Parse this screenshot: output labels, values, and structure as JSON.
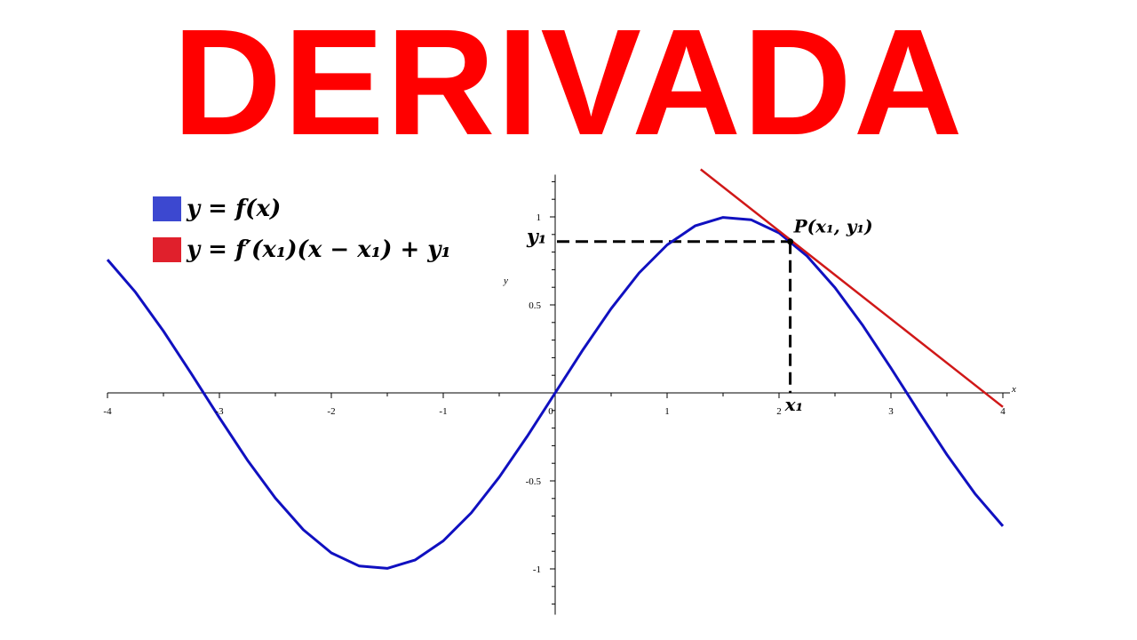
{
  "title": "DERIVADA",
  "colors": {
    "title": "#ff0000",
    "curve": "#1010c0",
    "tangent": "#d01818",
    "legend_curve": "#3c48d0",
    "legend_tangent": "#e0202c"
  },
  "legend": [
    {
      "label": "y = f(x)",
      "color": "#3c48d0"
    },
    {
      "label": "y = f′(x₁)(x − x₁) + y₁",
      "color": "#e0202c"
    }
  ],
  "annotations": {
    "point": "P(x₁, y₁)",
    "x1": "x₁",
    "y1": "y₁"
  },
  "chart_data": {
    "type": "line",
    "xlabel": "x",
    "ylabel": "y",
    "xlim": [
      -4,
      4
    ],
    "ylim": [
      -1.25,
      1.25
    ],
    "x_ticks": [
      -4,
      -3,
      -2,
      -1,
      0,
      1,
      2,
      3,
      4
    ],
    "x_tick_labels": [
      "-4",
      "-3",
      "-2",
      "-1",
      "0",
      "1",
      "2",
      "3",
      "4"
    ],
    "y_ticks": [
      1,
      0.5,
      -0.5,
      -1
    ],
    "y_tick_labels": [
      "1",
      "0.5",
      "-0.5",
      "-1"
    ],
    "series": [
      {
        "name": "y = f(x)",
        "x": [
          -4,
          -3.75,
          -3.5,
          -3.25,
          -3,
          -2.75,
          -2.5,
          -2.25,
          -2,
          -1.75,
          -1.5,
          -1.25,
          -1,
          -0.75,
          -0.5,
          -0.25,
          0,
          0.25,
          0.5,
          0.75,
          1,
          1.25,
          1.5,
          1.75,
          2,
          2.25,
          2.5,
          2.75,
          3,
          3.25,
          3.5,
          3.75,
          4
        ],
        "y": [
          0.757,
          0.572,
          0.351,
          0.108,
          -0.141,
          -0.382,
          -0.598,
          -0.778,
          -0.909,
          -0.984,
          -0.997,
          -0.949,
          -0.841,
          -0.682,
          -0.479,
          -0.247,
          0,
          0.247,
          0.479,
          0.682,
          0.841,
          0.949,
          0.997,
          0.984,
          0.909,
          0.778,
          0.598,
          0.382,
          0.141,
          -0.108,
          -0.351,
          -0.572,
          -0.757
        ]
      },
      {
        "name": "y = f′(x₁)(x − x₁) + y₁",
        "x": [
          1.3,
          4
        ],
        "y": [
          1.27,
          -0.08
        ]
      }
    ],
    "point": {
      "x": 2.1,
      "y": 0.86
    }
  }
}
